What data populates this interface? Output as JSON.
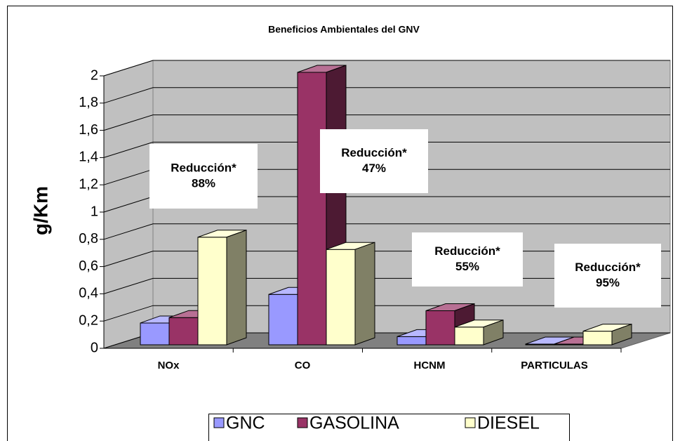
{
  "chart_data": {
    "type": "bar3d",
    "title": "Beneficios Ambientales del GNV",
    "y_label": "g/Km",
    "categories": [
      "NOx",
      "CO",
      "HCNM",
      "PARTICULAS"
    ],
    "series": [
      {
        "name": "GNC",
        "color": "#9999ff",
        "values": [
          0.16,
          0.37,
          0.06,
          0.005
        ]
      },
      {
        "name": "GASOLINA",
        "color": "#993366",
        "values": [
          0.2,
          2.0,
          0.25,
          0.005
        ]
      },
      {
        "name": "DIESEL",
        "color": "#ffffcc",
        "values": [
          0.79,
          0.7,
          0.13,
          0.1
        ]
      }
    ],
    "ylim": [
      0,
      2
    ],
    "yticks": [
      0,
      {
        "value": 0.2,
        "label": "0,2"
      },
      {
        "value": 0.4,
        "label": "0,4"
      },
      {
        "value": 0.6,
        "label": "0,6"
      },
      {
        "value": 0.8,
        "label": "0,8"
      },
      1,
      {
        "value": 1.2,
        "label": "1,2"
      },
      {
        "value": 1.4,
        "label": "1,4"
      },
      {
        "value": 1.6,
        "label": "1,6"
      },
      {
        "value": 1.8,
        "label": "1,8"
      },
      2
    ],
    "grid": true,
    "legend": "bottom",
    "annotations": [
      {
        "title": "Reducción*",
        "text": "88%"
      },
      {
        "title": "Reducción*",
        "text": "47%"
      },
      {
        "title": "Reducción*",
        "text": "55%"
      },
      {
        "title": "Reducción*",
        "text": "95%"
      }
    ]
  }
}
